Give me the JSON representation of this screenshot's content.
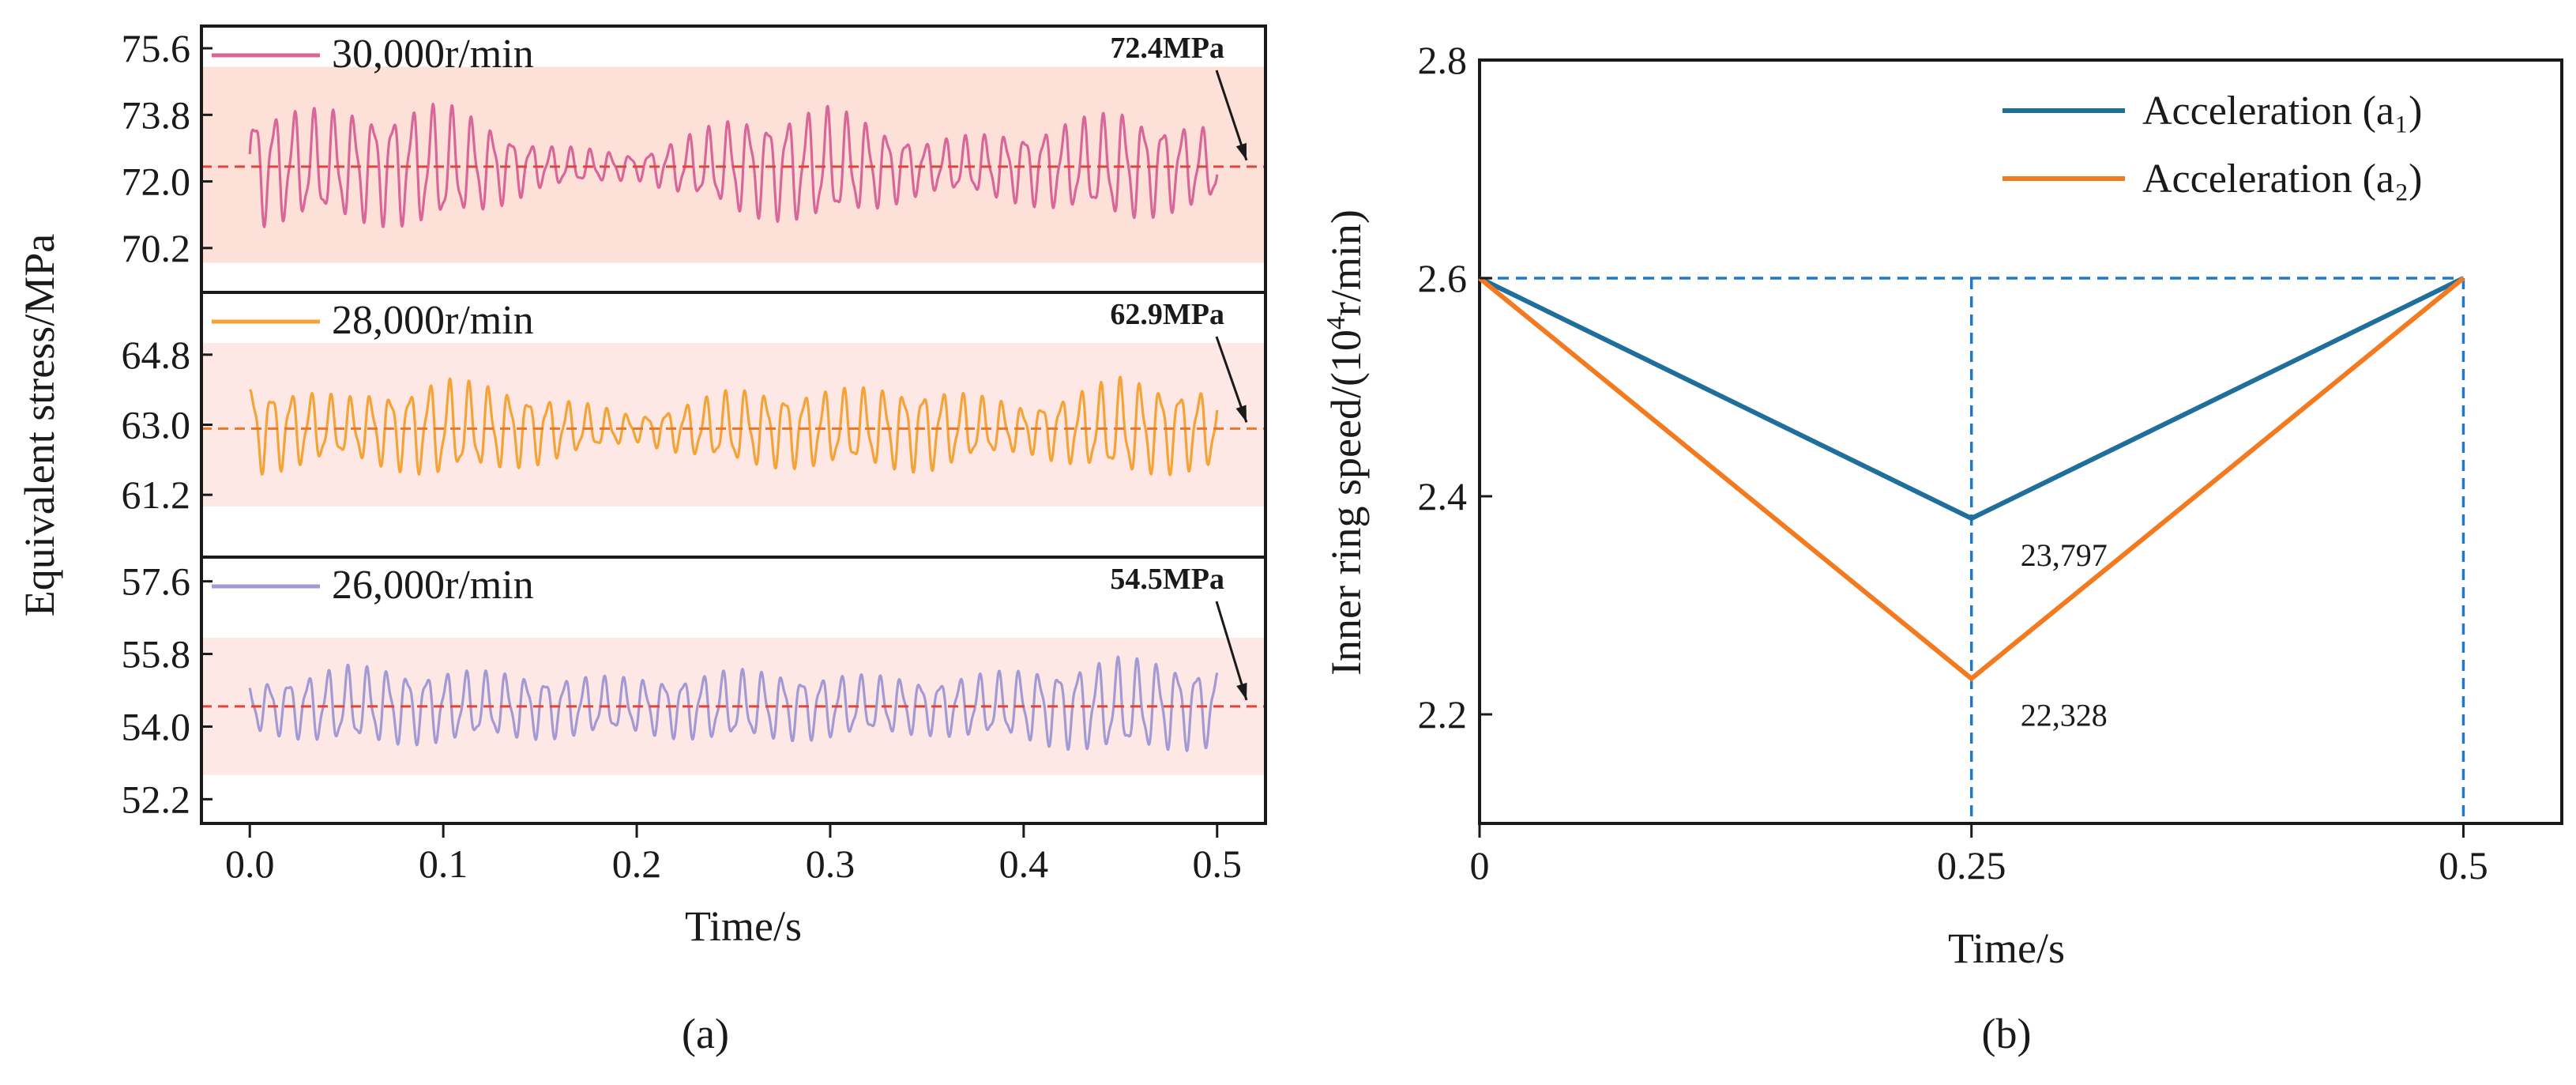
{
  "chart_data": [
    {
      "type": "line",
      "panel_label": "(a)",
      "xlabel": "Time/s",
      "ylabel": "Equivalent stress/MPa",
      "xlim": [
        -0.025,
        0.525
      ],
      "x_ticks": [
        "0.0",
        "0.1",
        "0.2",
        "0.3",
        "0.4",
        "0.5"
      ],
      "grid": false,
      "legend_placement": "top-left of each subplot",
      "subplots": [
        {
          "name": "30,000r/min",
          "color": "#d9669a",
          "band_color": "#fde0d8",
          "mean_line_color": "#e0443c",
          "ylim": [
            69.0,
            76.2
          ],
          "y_ticks": [
            "75.6",
            "73.8",
            "72.0",
            "70.2"
          ],
          "mean": 72.4,
          "band": [
            69.8,
            75.1
          ],
          "annotation": "72.4MPa",
          "amplitude_envelope": {
            "t": [
              0.0,
              0.05,
              0.1,
              0.15,
              0.2,
              0.25,
              0.3,
              0.35,
              0.4,
              0.45,
              0.5
            ],
            "amp": [
              1.6,
              1.5,
              1.7,
              0.6,
              0.35,
              1.3,
              1.6,
              0.7,
              1.0,
              1.5,
              1.0
            ]
          }
        },
        {
          "name": "28,000r/min",
          "color": "#f5a336",
          "band_color": "#fde8e6",
          "mean_line_color": "#e8772a",
          "ylim": [
            59.6,
            66.4
          ],
          "y_ticks": [
            "64.8",
            "63.0",
            "61.2"
          ],
          "mean": 62.9,
          "band": [
            60.9,
            65.1
          ],
          "annotation": "62.9MPa",
          "amplitude_envelope": {
            "t": [
              0.0,
              0.05,
              0.1,
              0.15,
              0.2,
              0.25,
              0.3,
              0.35,
              0.4,
              0.45,
              0.5
            ],
            "amp": [
              1.2,
              0.8,
              1.3,
              0.9,
              0.35,
              1.0,
              1.0,
              1.1,
              0.6,
              1.3,
              1.0
            ]
          }
        },
        {
          "name": "26,000r/min",
          "color": "#a399d3",
          "band_color": "#fde8e6",
          "mean_line_color": "#e0443c",
          "ylim": [
            51.6,
            58.2
          ],
          "y_ticks": [
            "57.6",
            "55.8",
            "54.0",
            "52.2"
          ],
          "mean": 54.5,
          "band": [
            52.8,
            56.2
          ],
          "annotation": "54.5MPa",
          "amplitude_envelope": {
            "t": [
              0.0,
              0.05,
              0.1,
              0.15,
              0.2,
              0.25,
              0.3,
              0.35,
              0.4,
              0.45,
              0.5
            ],
            "amp": [
              0.6,
              1.0,
              0.9,
              0.8,
              0.7,
              0.9,
              0.8,
              0.7,
              0.9,
              1.2,
              1.0
            ]
          }
        }
      ]
    },
    {
      "type": "line",
      "panel_label": "(b)",
      "xlabel": "Time/s",
      "ylabel": "Inner ring speed/(10⁴r/min)",
      "xlim": [
        0,
        0.55
      ],
      "ylim": [
        2.1,
        2.8
      ],
      "x_ticks": [
        {
          "value": 0,
          "label": "0"
        },
        {
          "value": 0.25,
          "label": "0.25"
        },
        {
          "value": 0.5,
          "label": "0.5"
        }
      ],
      "y_ticks": [
        "2.8",
        "2.6",
        "2.4",
        "2.2"
      ],
      "grid": false,
      "legend_placement": "top-right",
      "series": [
        {
          "name": "Acceleration (a₁)",
          "color": "#1f6e9c",
          "x": [
            0,
            0.25,
            0.5
          ],
          "y": [
            2.6,
            2.3797,
            2.6
          ],
          "point_label": "23,797"
        },
        {
          "name": "Acceleration (a₂)",
          "color": "#f47a20",
          "x": [
            0,
            0.25,
            0.5
          ],
          "y": [
            2.6,
            2.2328,
            2.6
          ],
          "point_label": "22,328"
        }
      ],
      "reference_lines": {
        "color": "#1f78c8",
        "horizontal_y": 2.6,
        "vertical_x": [
          0.25,
          0.5
        ]
      }
    }
  ]
}
